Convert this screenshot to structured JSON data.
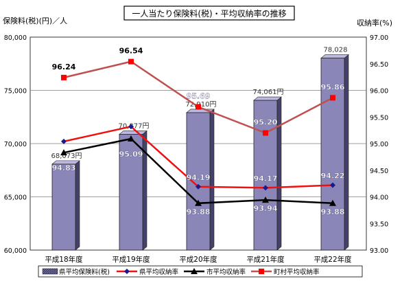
{
  "chart_data": {
    "type": "bar+line",
    "title": "一人当たり保険料(税)・平均収納率の推移",
    "ylabel_left": "保険料(税)(円)／人",
    "ylabel_right": "収納率(%)",
    "categories": [
      "平成18年度",
      "平成19年度",
      "平成20年度",
      "平成21年度",
      "平成22年度"
    ],
    "ylim_left": [
      60000,
      80000
    ],
    "yticks_left": [
      "60,000",
      "65,000",
      "70,000",
      "75,000",
      "80,000"
    ],
    "ylim_right": [
      93.0,
      97.0
    ],
    "yticks_right": [
      "93.00",
      "93.50",
      "94.00",
      "94.50",
      "95.00",
      "95.50",
      "96.00",
      "96.50",
      "97.00"
    ],
    "grid": true,
    "legend_position": "bottom",
    "bars": {
      "name": "県平均保険料(税)",
      "values": [
        68073,
        70877,
        72910,
        74061,
        78028
      ],
      "labels": [
        "68,073円",
        "70,877円",
        "72,910円",
        "74,061円",
        "78,028"
      ],
      "color": "#8a86b8"
    },
    "lines": [
      {
        "name": "県平均収納率",
        "values": [
          95.04,
          95.32,
          94.19,
          94.17,
          94.22
        ],
        "labels": [
          "",
          "",
          "94.19",
          "94.17",
          "94.22"
        ],
        "color": "#ee1111",
        "marker_color": "#1a1a8c",
        "marker": "diamond"
      },
      {
        "name": "市平均収納率",
        "values": [
          94.83,
          95.09,
          93.88,
          93.94,
          93.88
        ],
        "labels": [
          "94.83",
          "95.09",
          "93.88",
          "93.94",
          "93.88"
        ],
        "color": "#000000",
        "marker": "triangle"
      },
      {
        "name": "町村平均収納率",
        "values": [
          96.24,
          96.54,
          95.69,
          95.2,
          95.86
        ],
        "labels": [
          "96.24",
          "96.54",
          "95.69",
          "95.20",
          "95.86"
        ],
        "color": "#c05050",
        "marker_color": "#ff0000",
        "marker": "square"
      }
    ]
  }
}
